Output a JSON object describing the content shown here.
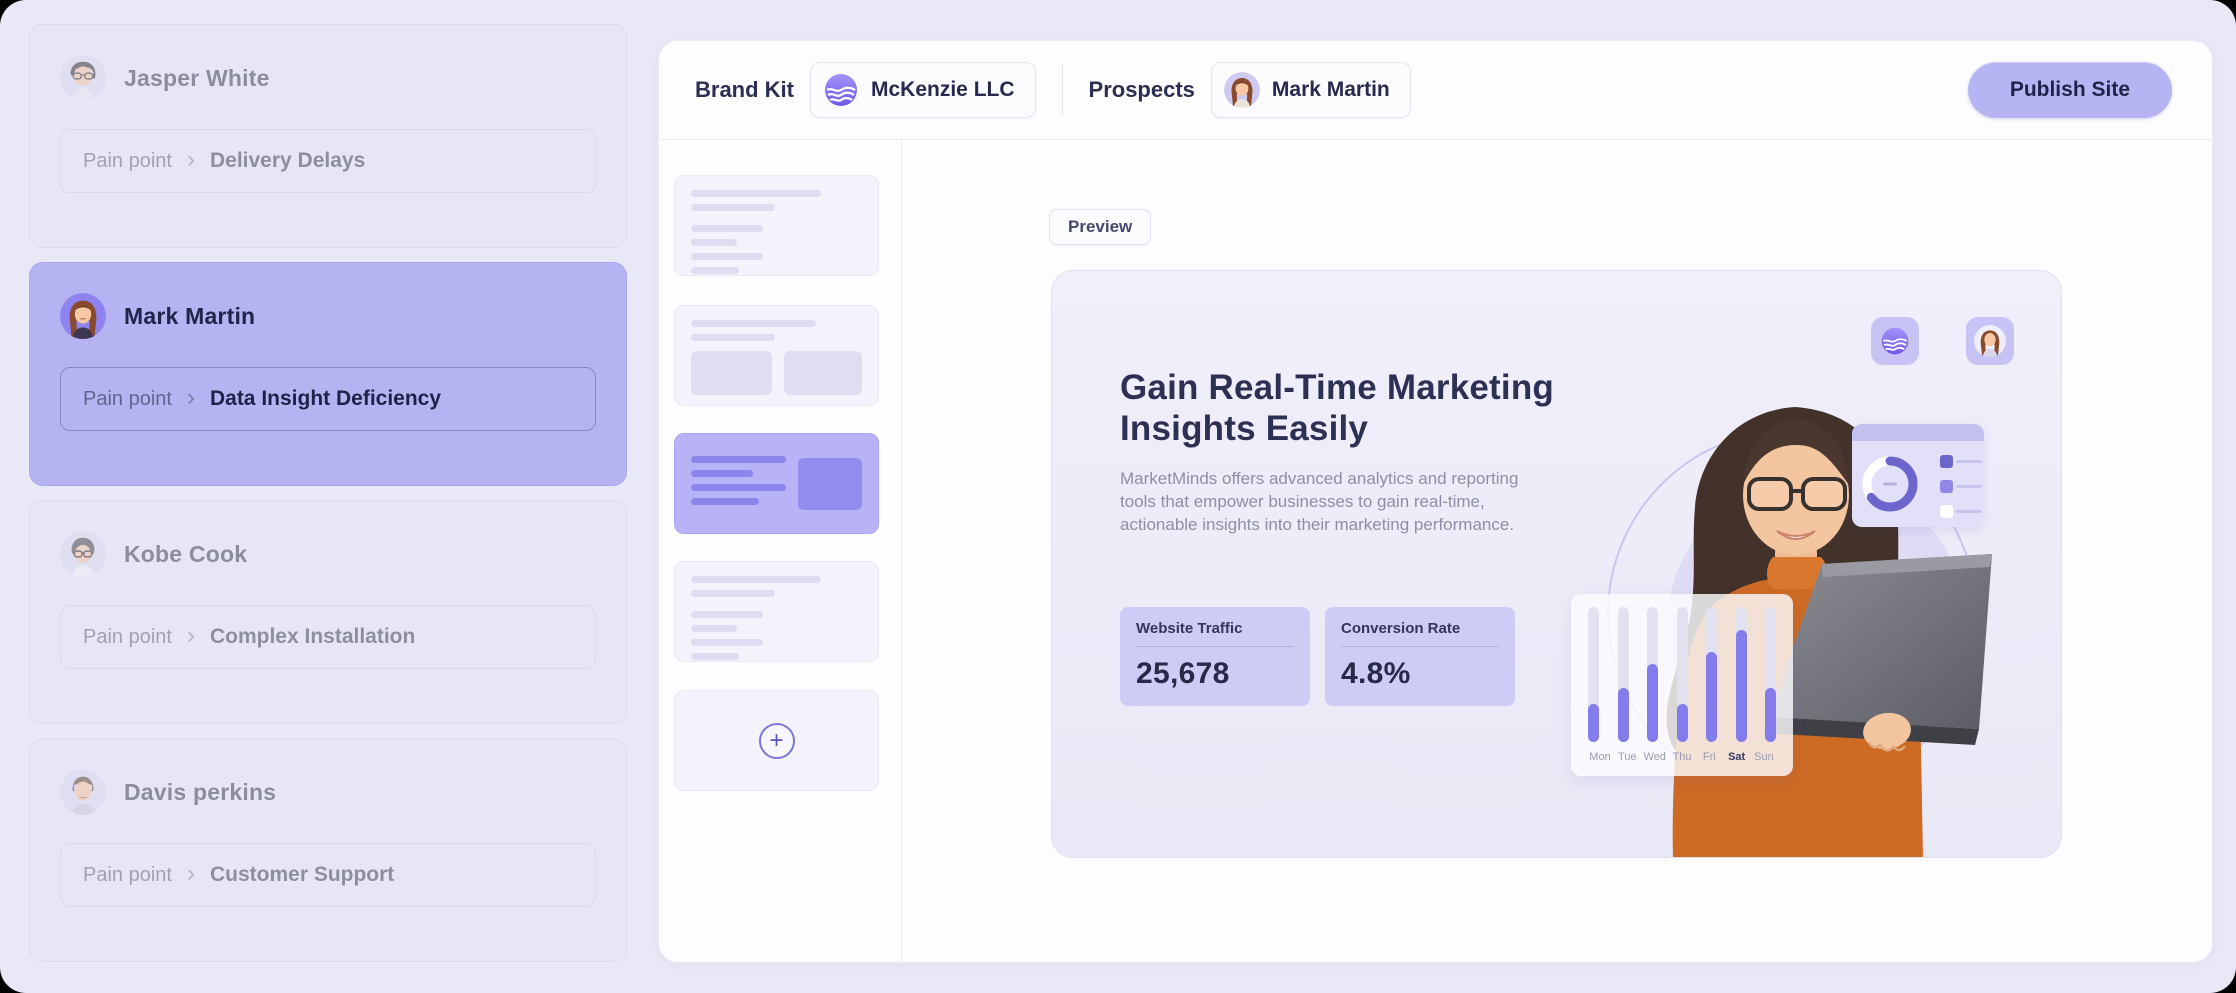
{
  "topbar": {
    "brand_kit_label": "Brand Kit",
    "brand_name": "McKenzie LLC",
    "prospects_label": "Prospects",
    "prospect_name": "Mark Martin",
    "publish_label": "Publish Site"
  },
  "sidebar": {
    "pain_label": "Pain point",
    "chevron": "›",
    "prospects": [
      {
        "name": "Jasper White",
        "pain": "Delivery Delays",
        "selected": false
      },
      {
        "name": "Mark Martin",
        "pain": "Data Insight Deficiency",
        "selected": true
      },
      {
        "name": "Kobe Cook",
        "pain": "Complex Installation",
        "selected": false
      },
      {
        "name": "Davis perkins",
        "pain": "Customer Support",
        "selected": false
      }
    ]
  },
  "editor": {
    "preview_label": "Preview",
    "add_section_icon": "+"
  },
  "hero": {
    "title": "Gain Real-Time Marketing Insights Easily",
    "description": "MarketMinds offers advanced analytics and reporting tools that empower businesses to gain real-time, actionable insights into their marketing performance.",
    "stats": [
      {
        "label": "Website Traffic",
        "value": "25,678"
      },
      {
        "label": "Conversion Rate",
        "value": "4.8%"
      }
    ]
  },
  "chart_data": {
    "type": "bar",
    "categories": [
      "Mon",
      "Tue",
      "Wed",
      "Thu",
      "Fri",
      "Sat",
      "Sun"
    ],
    "values": [
      28,
      40,
      58,
      28,
      67,
      83,
      40
    ],
    "ylim": [
      0,
      100
    ],
    "highlighted_category": "Sat",
    "note": "decorative weekly activity bars, values are % of track height"
  },
  "colors": {
    "accent": "#837cea",
    "selected_card": "#b6b3f3",
    "publish_button": "#b7b4f3",
    "page_background": "#e9e8f6",
    "panel_background": "#fdfdff",
    "dark_text": "#262947"
  }
}
